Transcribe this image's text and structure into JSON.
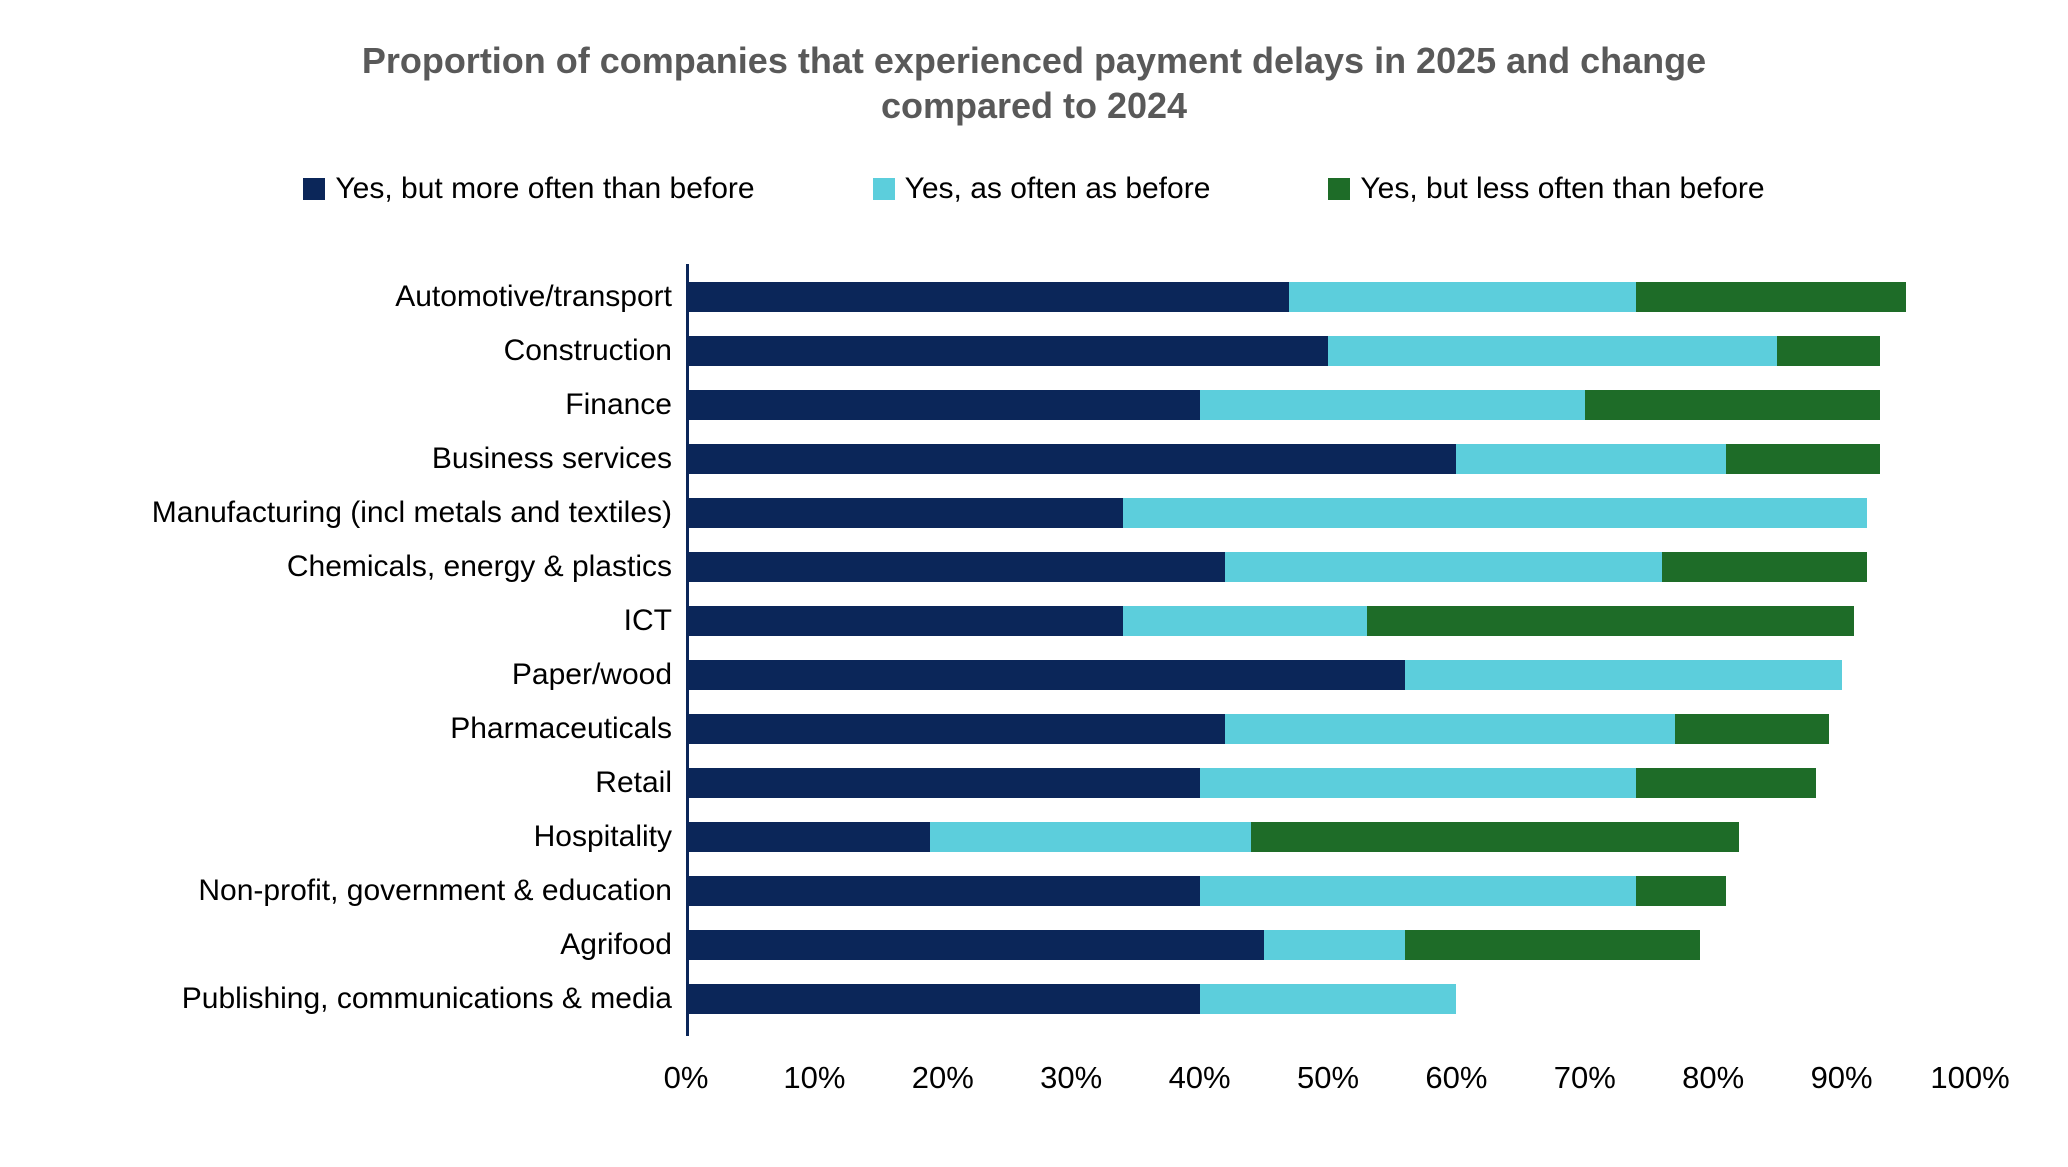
{
  "title": "Proportion of companies that experienced payment delays in 2025 and change compared to 2024",
  "colors": {
    "navy": "#0B2659",
    "cyan": "#5CCEDC",
    "green": "#1E6C28",
    "title_text": "#595959",
    "axis_line": "#0B2659",
    "label_text": "#000000"
  },
  "chart_data": {
    "type": "bar",
    "orientation": "horizontal",
    "stacked": true,
    "title": "Proportion of companies that experienced payment delays in 2025 and change compared to 2024",
    "xlabel": "",
    "ylabel": "",
    "xlim": [
      0,
      100
    ],
    "x_ticks": [
      "0%",
      "10%",
      "20%",
      "30%",
      "40%",
      "50%",
      "60%",
      "70%",
      "80%",
      "90%",
      "100%"
    ],
    "grid": false,
    "legend_position": "top",
    "categories": [
      "Automotive/transport",
      "Construction",
      "Finance",
      "Business services",
      "Manufacturing (incl metals and textiles)",
      "Chemicals, energy & plastics",
      "ICT",
      "Paper/wood",
      "Pharmaceuticals",
      "Retail",
      "Hospitality",
      "Non-profit, government & education",
      "Agrifood",
      "Publishing, communications & media"
    ],
    "series": [
      {
        "name": "Yes, but more often than before",
        "color": "#0B2659",
        "values": [
          47,
          50,
          40,
          60,
          34,
          42,
          34,
          56,
          42,
          40,
          19,
          40,
          45,
          40
        ]
      },
      {
        "name": "Yes, as often as before",
        "color": "#5CCEDC",
        "values": [
          27,
          35,
          30,
          21,
          58,
          34,
          19,
          34,
          35,
          34,
          25,
          34,
          11,
          20
        ]
      },
      {
        "name": "Yes, but less often than before",
        "color": "#1E6C28",
        "values": [
          21,
          8,
          23,
          12,
          0,
          16,
          38,
          0,
          12,
          14,
          38,
          7,
          23,
          0
        ]
      }
    ],
    "totals": [
      95,
      93,
      93,
      93,
      92,
      92,
      91,
      90,
      89,
      88,
      82,
      81,
      79,
      60
    ]
  }
}
